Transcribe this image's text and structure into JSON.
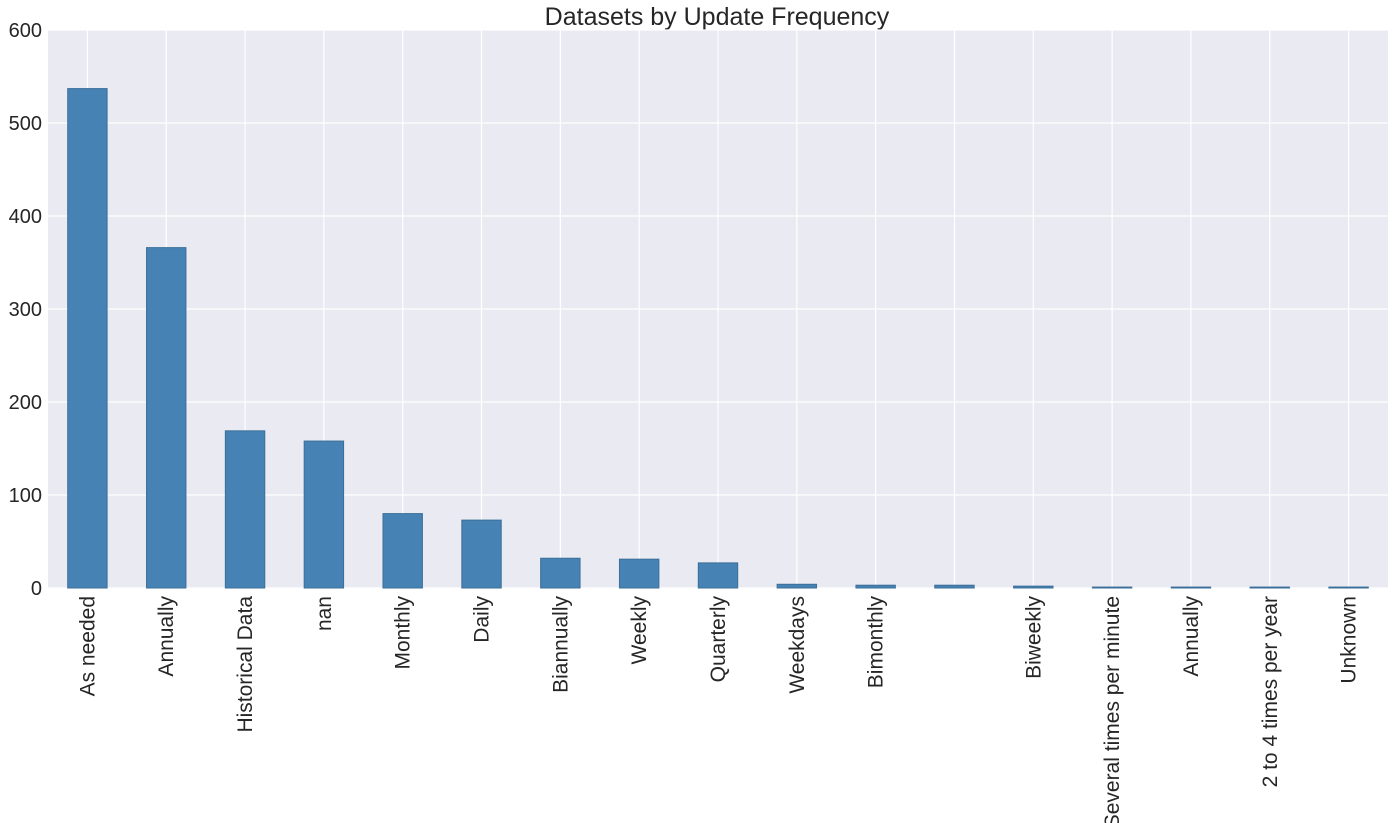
{
  "chart_data": {
    "type": "bar",
    "title": "Datasets by Update Frequency",
    "xlabel": "",
    "ylabel": "",
    "categories": [
      "As needed",
      "Annually",
      "Historical Data",
      "nan",
      "Monthly",
      "Daily",
      "Biannually",
      "Weekly",
      "Quarterly",
      "Weekdays",
      "Bimonthly",
      "",
      "Biweekly",
      "Several times per minute",
      "Annually",
      "2 to 4 times per year",
      "Unknown"
    ],
    "values": [
      537,
      366,
      169,
      158,
      80,
      73,
      32,
      31,
      27,
      4,
      3,
      3,
      2,
      1,
      1,
      1,
      1
    ],
    "ylim": [
      0,
      600
    ],
    "yticks": [
      0,
      100,
      200,
      300,
      400,
      500,
      600
    ],
    "grid": true,
    "colors": {
      "bar": "#4682b4",
      "bar_edge": "#3b6f99",
      "background": "#eaeaf2",
      "grid": "#ffffff",
      "text": "#262626"
    }
  }
}
